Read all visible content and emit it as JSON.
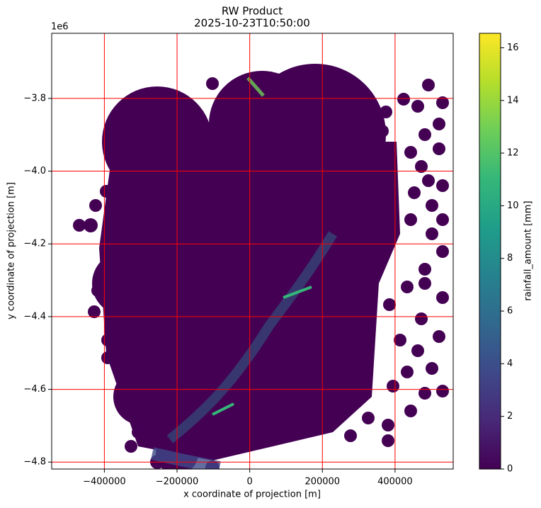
{
  "chart_data": {
    "type": "image",
    "title": "RW Product",
    "subtitle": "2025-10-23T10:50:00",
    "x_label": "x coordinate of projection [m]",
    "y_label": "y coordinate of projection [m]",
    "y_offset_label": "1e6",
    "xlim": [
      -545000,
      560000
    ],
    "xticks": [
      {
        "value": -400000,
        "label": "−400000"
      },
      {
        "value": -200000,
        "label": "−200000"
      },
      0,
      {
        "value": 200000,
        "label": "200000"
      },
      {
        "value": 400000,
        "label": "400000"
      }
    ],
    "ylim": [
      -4819000,
      -3621000
    ],
    "yticks": [
      {
        "value": -4800000,
        "label": "−4.8"
      },
      {
        "value": -4600000,
        "label": "−4.6"
      },
      {
        "value": -4400000,
        "label": "−4.4"
      },
      {
        "value": -4200000,
        "label": "−4.2"
      },
      {
        "value": -4000000,
        "label": "−4.0"
      },
      {
        "value": -3800000,
        "label": "−3.8"
      }
    ],
    "grid": true,
    "grid_color": "#ff0000",
    "colorbar": {
      "label": "rainfall_amount [mm]",
      "clim": [
        0,
        16.55
      ],
      "ticks": [
        0,
        2,
        4,
        6,
        8,
        10,
        12,
        14,
        16
      ],
      "colormap": [
        "#440154",
        "#482878",
        "#3e4989",
        "#31688e",
        "#26828e",
        "#1f9e89",
        "#35b779",
        "#6ece58",
        "#b5de2b",
        "#fde725"
      ]
    }
  }
}
